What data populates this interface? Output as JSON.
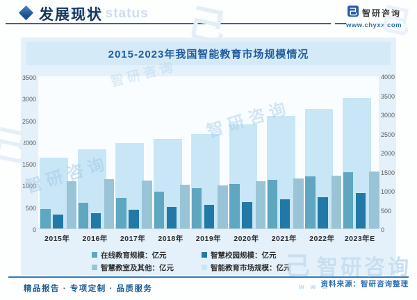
{
  "header": {
    "title": "发展现状",
    "watermark_text": "ment status",
    "brand": {
      "logo_glyph": "己",
      "name": "智研咨询",
      "url": "www.chyxx.com"
    }
  },
  "watermark": {
    "text": "智研咨询",
    "glyph": "己",
    "www": "w w w"
  },
  "chart_data": {
    "type": "bar",
    "title": "2015-2023年我国智能教育市场规模情况",
    "categories": [
      "2015年",
      "2016年",
      "2017年",
      "2018年",
      "2019年",
      "2020年",
      "2021年",
      "2022年",
      "2023年E"
    ],
    "series": [
      {
        "name": "在线教育规模：亿元",
        "axis": "left",
        "color": "#5fa6c0",
        "values": [
          450,
          590,
          700,
          840,
          930,
          1030,
          1120,
          1200,
          1290
        ]
      },
      {
        "name": "智慧校园规模：亿元",
        "axis": "left",
        "color": "#2279a7",
        "values": [
          320,
          350,
          440,
          495,
          550,
          610,
          675,
          720,
          810
        ]
      },
      {
        "name": "智慧教室及其他：亿元",
        "axis": "left",
        "color": "#99c4d7",
        "values": [
          1080,
          1130,
          1100,
          1010,
          990,
          1085,
          1145,
          1210,
          1315
        ]
      },
      {
        "name": "智能教育市场规模：亿元",
        "axis": "right",
        "color": "#c8e6f6",
        "values": [
          1850,
          2070,
          2240,
          2350,
          2470,
          2730,
          2940,
          3130,
          3410
        ]
      }
    ],
    "left_axis": {
      "min": 0,
      "max": 3500,
      "step": 500,
      "ticks": [
        "3500",
        "3000",
        "2500",
        "2000",
        "1500",
        "1000",
        "500",
        "0"
      ]
    },
    "right_axis": {
      "min": 0,
      "max": 4000,
      "step": 500,
      "ticks": [
        "4000",
        "3500",
        "3000",
        "2500",
        "2000",
        "1500",
        "1000",
        "500",
        "0"
      ]
    },
    "legend_position": "bottom",
    "grid": false
  },
  "footer": {
    "left": "精品报告 · 专项定制 · 品质服务",
    "source": "资料来源：智研咨询整理"
  }
}
